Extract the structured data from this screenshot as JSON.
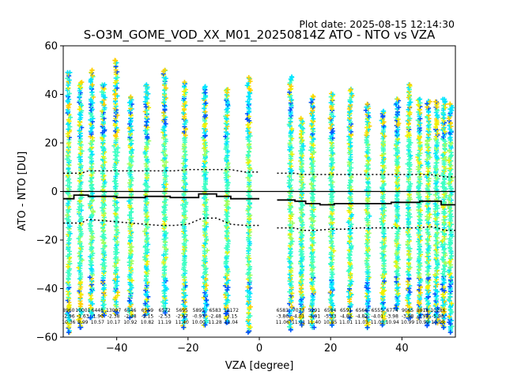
{
  "plot_date": "Plot date: 2025-08-15 12:14:30",
  "chart_data": {
    "type": "scatter",
    "title": "S-O3M_GOME_VOD_XX_M01_20250814Z ATO - NTO vs VZA",
    "xlabel": "VZA [degree]",
    "ylabel": "ATO - NTO [DU]",
    "xlim": [
      -55,
      55
    ],
    "ylim": [
      -60,
      60
    ],
    "x_ticks": [
      -40,
      -20,
      0,
      20,
      40
    ],
    "y_ticks": [
      -60,
      -40,
      -20,
      0,
      20,
      40,
      60
    ],
    "grid": false,
    "colors": {
      "cyan": "#00e5ff",
      "aqua": "#3dffc4",
      "yellow": "#f0f000",
      "gold": "#ffd000",
      "orange": "#ffb000",
      "blue": "#0055ff",
      "navy": "#0000d0",
      "lime": "#a0ff60",
      "zero_line": "#000000"
    },
    "scatter_columns": [
      {
        "x": -53.5,
        "top": 49,
        "bottom": -58
      },
      {
        "x": -50.2,
        "top": 45,
        "bottom": -56
      },
      {
        "x": -47.1,
        "top": 50,
        "bottom": -52
      },
      {
        "x": -43.7,
        "top": 44,
        "bottom": -51
      },
      {
        "x": -40.2,
        "top": 54,
        "bottom": -50
      },
      {
        "x": -36.1,
        "top": 39,
        "bottom": -52
      },
      {
        "x": -31.6,
        "top": 44,
        "bottom": -51
      },
      {
        "x": -26.5,
        "top": 50,
        "bottom": -50
      },
      {
        "x": -21.0,
        "top": 45,
        "bottom": -56
      },
      {
        "x": -15.2,
        "top": 43,
        "bottom": -55
      },
      {
        "x": -9.1,
        "top": 42,
        "bottom": -54
      },
      {
        "x": -2.9,
        "top": 47,
        "bottom": -58
      },
      {
        "x": 8.8,
        "top": 47,
        "bottom": -57
      },
      {
        "x": 11.9,
        "top": 30,
        "bottom": -55
      },
      {
        "x": 14.9,
        "top": 39,
        "bottom": -56
      },
      {
        "x": 20.3,
        "top": 40,
        "bottom": -55
      },
      {
        "x": 25.5,
        "top": 42,
        "bottom": -52
      },
      {
        "x": 30.4,
        "top": 36,
        "bottom": -56
      },
      {
        "x": 34.8,
        "top": 33,
        "bottom": -55
      },
      {
        "x": 38.7,
        "top": 38,
        "bottom": -48
      },
      {
        "x": 42.0,
        "top": 44,
        "bottom": -52
      },
      {
        "x": 44.9,
        "top": 38,
        "bottom": -52
      },
      {
        "x": 47.4,
        "top": 37,
        "bottom": -55
      },
      {
        "x": 49.7,
        "top": 37,
        "bottom": -54
      },
      {
        "x": 51.8,
        "top": 38,
        "bottom": -56
      },
      {
        "x": 53.6,
        "top": 36,
        "bottom": -58
      }
    ],
    "mean_line": {
      "left": {
        "x": [
          -55,
          -52,
          -52,
          -48,
          -48,
          -44,
          -44,
          -40,
          -40,
          -36,
          -36,
          -32,
          -32,
          -28,
          -28,
          -25,
          -25,
          -21,
          -21,
          -17,
          -17,
          -12,
          -12,
          -8,
          -8,
          -5,
          -5,
          0
        ],
        "y": [
          -3,
          -3,
          -1.5,
          -1.5,
          -2,
          -2,
          -2,
          -2,
          -2.5,
          -2.5,
          -2.5,
          -2.5,
          -2,
          -2,
          -2,
          -2,
          -2.5,
          -2.5,
          -2.5,
          -2.5,
          -1,
          -1,
          -2,
          -2,
          -3,
          -3,
          -3,
          -3
        ]
      },
      "right": {
        "x": [
          5,
          10,
          10,
          13,
          13,
          17,
          17,
          21,
          21,
          25,
          25,
          29,
          29,
          33,
          33,
          37,
          37,
          41,
          41,
          45,
          45,
          49,
          49,
          51,
          51,
          55
        ],
        "y": [
          -3.5,
          -3.5,
          -4,
          -4,
          -5,
          -5,
          -5.5,
          -5.5,
          -5,
          -5,
          -5,
          -5,
          -5,
          -5,
          -5,
          -5,
          -4.5,
          -4.5,
          -4.5,
          -4.5,
          -4,
          -4,
          -4,
          -4,
          -5.5,
          -5.5
        ]
      }
    },
    "plus_sigma_line": {
      "left": {
        "x": [
          -55,
          -50,
          -48,
          -44,
          -40,
          -36,
          -32,
          -28,
          -24,
          -20,
          -16,
          -12,
          -8,
          -4,
          0
        ],
        "y": [
          7.5,
          7.5,
          8.5,
          8.5,
          8.5,
          8.5,
          8.5,
          8.5,
          8.5,
          9,
          9,
          9,
          9,
          8,
          8
        ]
      },
      "right": {
        "x": [
          5,
          10,
          12,
          16,
          20,
          24,
          28,
          32,
          36,
          40,
          44,
          48,
          50,
          52,
          55
        ],
        "y": [
          7.5,
          7.5,
          7,
          7,
          7,
          7,
          7,
          7,
          7,
          7,
          7,
          7,
          6.5,
          6,
          6
        ]
      }
    },
    "minus_sigma_line": {
      "left": {
        "x": [
          -55,
          -50,
          -48,
          -44,
          -40,
          -36,
          -32,
          -28,
          -24,
          -20,
          -16,
          -12,
          -8,
          -4,
          0
        ],
        "y": [
          -13,
          -13,
          -11.5,
          -12,
          -12.5,
          -13,
          -13.5,
          -14,
          -14,
          -13.5,
          -11,
          -11,
          -13.5,
          -14,
          -14
        ]
      },
      "right": {
        "x": [
          5,
          10,
          12,
          16,
          20,
          24,
          28,
          32,
          36,
          40,
          44,
          48,
          50,
          52,
          55
        ],
        "y": [
          -15,
          -15,
          -16,
          -16,
          -15.5,
          -15.5,
          -15,
          -15,
          -15,
          -15,
          -15,
          -14.5,
          -15,
          -16,
          -16
        ]
      }
    },
    "stats": [
      {
        "x": -53.5,
        "lines": [
          "8960",
          "-2.96",
          "10.36"
        ]
      },
      {
        "x": -49.5,
        "lines": [
          "10001",
          "-1.63",
          "9.99"
        ]
      },
      {
        "x": -45.4,
        "lines": [
          "6448",
          "-1.90",
          "10.57"
        ]
      },
      {
        "x": -40.9,
        "lines": [
          "13007",
          "-2.38",
          "10.17"
        ]
      },
      {
        "x": -36.2,
        "lines": [
          "6546",
          "-2.48",
          "10.92"
        ]
      },
      {
        "x": -31.4,
        "lines": [
          "6569",
          "-2.15",
          "10.82"
        ]
      },
      {
        "x": -26.6,
        "lines": [
          "6572",
          "-2.53",
          "11.19"
        ]
      },
      {
        "x": -21.7,
        "lines": [
          "5695",
          "-2.67",
          "11.40"
        ]
      },
      {
        "x": -17.0,
        "lines": [
          "5895",
          "-0.97",
          "10.00"
        ]
      },
      {
        "x": -12.4,
        "lines": [
          "6583",
          "-2.48",
          "11.28"
        ]
      },
      {
        "x": -7.9,
        "lines": [
          "12172",
          "-3.15",
          "11.04"
        ]
      },
      {
        "x": 6.5,
        "lines": [
          "6583",
          "-3.86",
          "11.06"
        ]
      },
      {
        "x": 11.0,
        "lines": [
          "7073",
          "-4.01",
          "11.01"
        ]
      },
      {
        "x": 15.4,
        "lines": [
          "5291",
          "-4.91",
          "11.40"
        ]
      },
      {
        "x": 19.9,
        "lines": [
          "6584",
          "-5.33",
          "10.85"
        ]
      },
      {
        "x": 24.3,
        "lines": [
          "6591",
          "-4.82",
          "11.01"
        ]
      },
      {
        "x": 28.7,
        "lines": [
          "6566",
          "-4.82",
          "11.03"
        ]
      },
      {
        "x": 33.1,
        "lines": [
          "6555",
          "-4.01",
          "11.03"
        ]
      },
      {
        "x": 37.3,
        "lines": [
          "6774",
          "-3.98",
          "10.94"
        ]
      },
      {
        "x": 41.6,
        "lines": [
          "9065",
          "-3.98",
          "10.99"
        ]
      },
      {
        "x": 45.8,
        "lines": [
          "8818",
          "-3.98",
          "10.99"
        ]
      },
      {
        "x": 50.1,
        "lines": [
          "10286",
          "-5.98",
          "10.99"
        ]
      }
    ]
  }
}
